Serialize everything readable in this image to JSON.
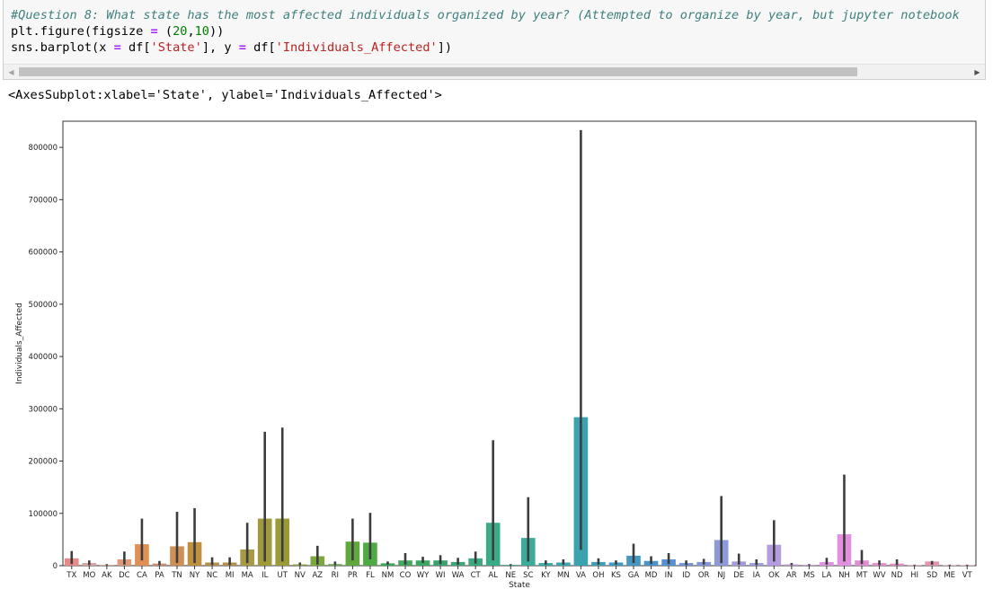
{
  "cell": {
    "code_lines": [
      "#Question 8: What state has the most affected individuals organized by year? (Attempted to organize by year, but jupyter notebook",
      "plt.figure(figsize = (20,10))",
      "sns.barplot(x = df['State'], y = df['Individuals_Affected'])"
    ],
    "output_text": "<AxesSubplot:xlabel='State', ylabel='Individuals_Affected'>"
  },
  "chart_data": {
    "type": "bar",
    "xlabel": "State",
    "ylabel": "Individuals_Affected",
    "ylim": [
      0,
      850000
    ],
    "yticks": [
      0,
      100000,
      200000,
      300000,
      400000,
      500000,
      600000,
      700000,
      800000
    ],
    "ytick_labels": [
      "0",
      "100000",
      "200000",
      "300000",
      "400000",
      "500000",
      "600000",
      "700000",
      "800000"
    ],
    "categories": [
      "TX",
      "MO",
      "AK",
      "DC",
      "CA",
      "PA",
      "TN",
      "NY",
      "NC",
      "MI",
      "MA",
      "IL",
      "UT",
      "NV",
      "AZ",
      "RI",
      "PR",
      "FL",
      "NM",
      "CO",
      "WY",
      "WI",
      "WA",
      "CT",
      "AL",
      "NE",
      "SC",
      "KY",
      "MN",
      "VA",
      "OH",
      "KS",
      "GA",
      "MD",
      "IN",
      "ID",
      "OR",
      "NJ",
      "DE",
      "IA",
      "OK",
      "AR",
      "MS",
      "LA",
      "NH",
      "MT",
      "WV",
      "ND",
      "HI",
      "SD",
      "ME",
      "VT"
    ],
    "values": [
      14000,
      5000,
      1500,
      12000,
      41000,
      4000,
      37000,
      45000,
      6000,
      6000,
      31000,
      90000,
      90000,
      2500,
      18000,
      3000,
      46000,
      44000,
      4500,
      10000,
      10000,
      10000,
      7000,
      14000,
      82000,
      1500,
      53000,
      5000,
      6000,
      284000,
      7000,
      6000,
      19000,
      9000,
      12000,
      5000,
      7000,
      49000,
      8000,
      5000,
      40000,
      2500,
      1500,
      7000,
      60000,
      10000,
      5000,
      4000,
      1000,
      8000,
      1000,
      1000
    ],
    "ci_low": [
      3000,
      1000,
      500,
      2000,
      10000,
      1000,
      5000,
      5000,
      1000,
      1000,
      5000,
      8000,
      8000,
      1000,
      2000,
      1000,
      10000,
      12000,
      2000,
      2000,
      5000,
      3000,
      2000,
      4000,
      10000,
      500,
      8000,
      2000,
      2000,
      30000,
      2000,
      2000,
      5000,
      3000,
      3000,
      1000,
      2000,
      5000,
      2000,
      1000,
      8000,
      1000,
      500,
      2000,
      8000,
      3000,
      1000,
      1000,
      500,
      2000,
      500,
      500
    ],
    "ci_high": [
      28000,
      10000,
      3000,
      27000,
      90000,
      9000,
      103000,
      110000,
      16000,
      16000,
      82000,
      256000,
      264000,
      6000,
      38000,
      8000,
      90000,
      101000,
      8000,
      24000,
      17000,
      20000,
      15000,
      27000,
      240000,
      3000,
      131000,
      10000,
      12000,
      833000,
      14000,
      10000,
      42000,
      18000,
      24000,
      10000,
      13000,
      133000,
      23000,
      12000,
      87000,
      5000,
      3000,
      15000,
      174000,
      30000,
      10000,
      12000,
      2000,
      9000,
      2000,
      2000
    ],
    "colors": [
      "#e88b88",
      "#d9a0a0",
      "#dea08a",
      "#e09a78",
      "#e08f55",
      "#c88f6f",
      "#d09055",
      "#c09040",
      "#b39050",
      "#b39050",
      "#a89a44",
      "#a09a3a",
      "#9a9a38",
      "#8aa040",
      "#7ba83e",
      "#6ea654",
      "#60a83e",
      "#50aa44",
      "#3ca85a",
      "#44a860",
      "#3ca865",
      "#3ba46e",
      "#3ca678",
      "#3caa7e",
      "#3baa86",
      "#3ca890",
      "#3cab99",
      "#3ba8a2",
      "#3ba6ac",
      "#3ba3b0",
      "#3ea0b7",
      "#409bbe",
      "#4598c4",
      "#4a94cb",
      "#5592cf",
      "#7296d4",
      "#8197d6",
      "#8d99d8",
      "#a49bd9",
      "#a09bda",
      "#b59be0",
      "#c098e0",
      "#cd96e0",
      "#dd93e2",
      "#e18fde",
      "#e18fd2",
      "#e090cb",
      "#e08fc0",
      "#e28fb8",
      "#e394b0",
      "#e39aaa",
      "#e39ca8"
    ],
    "grid": false,
    "legend": "none"
  }
}
